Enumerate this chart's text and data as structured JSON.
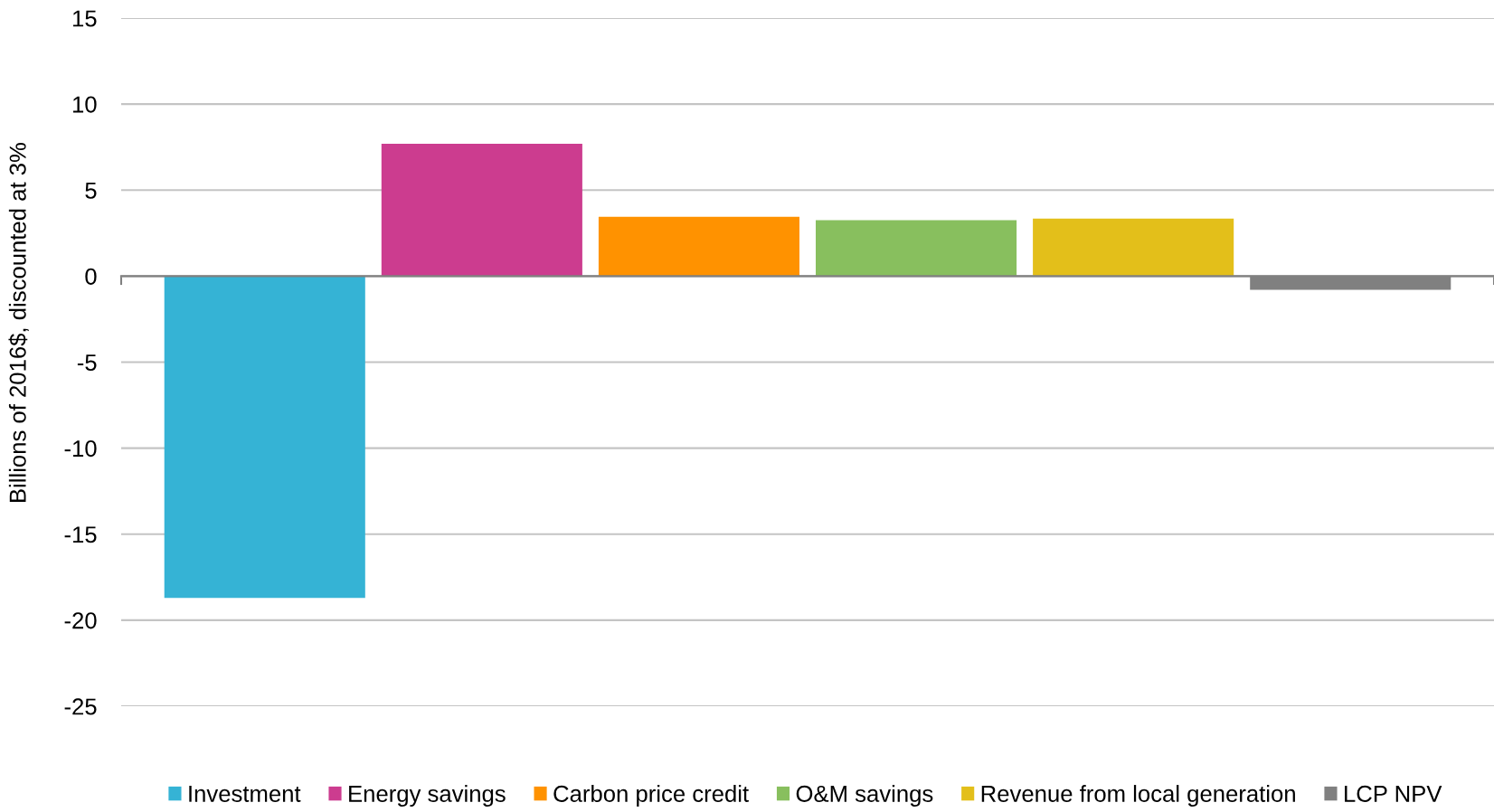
{
  "chart_data": {
    "type": "bar",
    "ylabel": "Billions of 2016$, discounted at 3%",
    "categories": [
      null
    ],
    "series": [
      {
        "name": "Investment",
        "color": "#35b3d5",
        "values": [
          -18.7
        ]
      },
      {
        "name": "Energy savings",
        "color": "#cc3c8f",
        "values": [
          7.7
        ]
      },
      {
        "name": "Carbon price credit",
        "color": "#ff9200",
        "values": [
          3.45
        ]
      },
      {
        "name": "O&M savings",
        "color": "#88bf5e",
        "values": [
          3.25
        ]
      },
      {
        "name": "Revenue from local generation",
        "color": "#e3bf1a",
        "values": [
          3.35
        ]
      },
      {
        "name": "LCP NPV",
        "color": "#808080",
        "values": [
          -0.8
        ]
      }
    ],
    "ylim": [
      -25,
      15
    ],
    "yticks": [
      -25,
      -20,
      -15,
      -10,
      -5,
      0,
      5,
      10,
      15
    ],
    "grid": "y",
    "legend": "bottom"
  }
}
